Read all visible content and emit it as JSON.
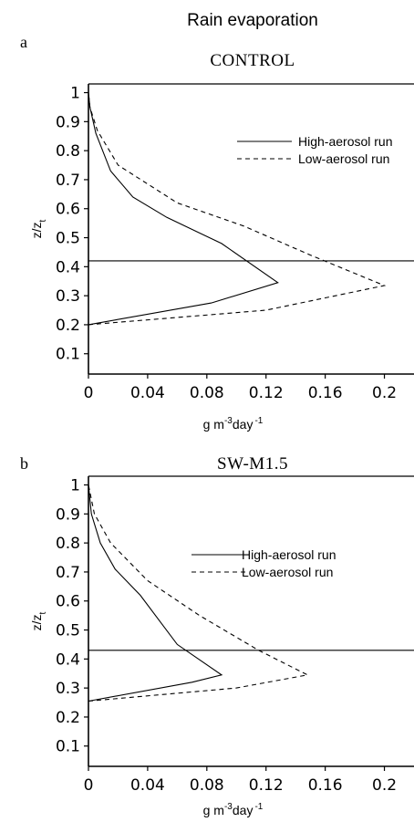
{
  "title": "Rain evaporation",
  "chart_data": [
    {
      "type": "line",
      "panel_label": "a",
      "title": "CONTROL",
      "xlabel": "g m-3day-1",
      "xlabel_parts": {
        "base1": "g m",
        "sup1": "-3",
        "base2": "day",
        "sup2": "-1"
      },
      "ylabel": "z/zt",
      "ylabel_parts": {
        "base": "z/z",
        "sub": "t"
      },
      "xlim": [
        0,
        0.22
      ],
      "ylim": [
        0.03,
        1.03
      ],
      "xticks": [
        0,
        0.04,
        0.08,
        0.12,
        0.16,
        0.2
      ],
      "xtick_labels": [
        "0",
        "0.04",
        "0.08",
        "0.12",
        "0.16",
        "0.2"
      ],
      "yticks": [
        0.1,
        0.2,
        0.3,
        0.4,
        0.5,
        0.6,
        0.7,
        0.8,
        0.9,
        1
      ],
      "ytick_labels": [
        "0.1",
        "0.2",
        "0.3",
        "0.4",
        "0.5",
        "0.6",
        "0.7",
        "0.8",
        "0.9",
        "1"
      ],
      "legend_position": "upper-right",
      "reference_line_y": 0.42,
      "series": [
        {
          "name": "High-aerosol run",
          "style": "solid",
          "color": "#000000",
          "points": [
            [
              0.0,
              0.2
            ],
            [
              0.083,
              0.275
            ],
            [
              0.128,
              0.345
            ],
            [
              0.09,
              0.48
            ],
            [
              0.053,
              0.57
            ],
            [
              0.03,
              0.64
            ],
            [
              0.015,
              0.73
            ],
            [
              0.005,
              0.86
            ],
            [
              0.001,
              0.95
            ],
            [
              0.0,
              1.0
            ]
          ]
        },
        {
          "name": "Low-aerosol run",
          "style": "dashed",
          "color": "#000000",
          "points": [
            [
              0.0,
              0.2
            ],
            [
              0.12,
              0.25
            ],
            [
              0.2,
              0.335
            ],
            [
              0.15,
              0.44
            ],
            [
              0.105,
              0.54
            ],
            [
              0.06,
              0.62
            ],
            [
              0.02,
              0.75
            ],
            [
              0.006,
              0.87
            ],
            [
              0.001,
              0.95
            ],
            [
              0.0,
              1.0
            ]
          ]
        }
      ]
    },
    {
      "type": "line",
      "panel_label": "b",
      "title": "SW-M1.5",
      "xlabel": "g m-3day-1",
      "xlabel_parts": {
        "base1": "g m",
        "sup1": "-3",
        "base2": "day",
        "sup2": "-1"
      },
      "ylabel": "z/zt",
      "ylabel_parts": {
        "base": "z/z",
        "sub": "t"
      },
      "xlim": [
        0,
        0.22
      ],
      "ylim": [
        0.03,
        1.03
      ],
      "xticks": [
        0,
        0.04,
        0.08,
        0.12,
        0.16,
        0.2
      ],
      "xtick_labels": [
        "0",
        "0.04",
        "0.08",
        "0.12",
        "0.16",
        "0.2"
      ],
      "yticks": [
        0.1,
        0.2,
        0.3,
        0.4,
        0.5,
        0.6,
        0.7,
        0.8,
        0.9,
        1
      ],
      "ytick_labels": [
        "0.1",
        "0.2",
        "0.3",
        "0.4",
        "0.5",
        "0.6",
        "0.7",
        "0.8",
        "0.9",
        "1"
      ],
      "legend_position": "upper-right",
      "reference_line_y": 0.43,
      "series": [
        {
          "name": "High-aerosol run",
          "style": "solid",
          "color": "#000000",
          "points": [
            [
              0.0,
              0.255
            ],
            [
              0.07,
              0.32
            ],
            [
              0.09,
              0.345
            ],
            [
              0.06,
              0.45
            ],
            [
              0.035,
              0.62
            ],
            [
              0.018,
              0.71
            ],
            [
              0.008,
              0.8
            ],
            [
              0.002,
              0.9
            ],
            [
              0.0,
              1.0
            ]
          ]
        },
        {
          "name": "Low-aerosol run",
          "style": "dashed",
          "color": "#000000",
          "points": [
            [
              0.0,
              0.255
            ],
            [
              0.1,
              0.3
            ],
            [
              0.148,
              0.345
            ],
            [
              0.115,
              0.43
            ],
            [
              0.075,
              0.55
            ],
            [
              0.04,
              0.67
            ],
            [
              0.015,
              0.8
            ],
            [
              0.004,
              0.9
            ],
            [
              0.0,
              1.0
            ]
          ]
        }
      ]
    }
  ]
}
